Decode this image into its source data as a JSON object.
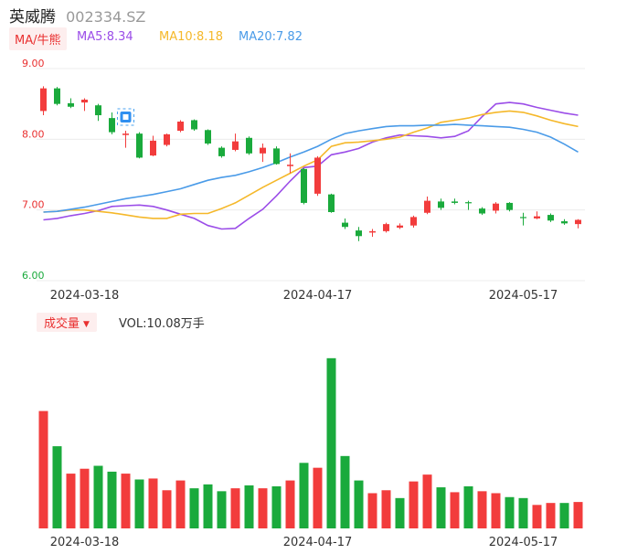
{
  "header": {
    "name": "英威腾",
    "code": "002334.SZ"
  },
  "ma_legend": {
    "toggle_label": "MA/牛熊",
    "items": [
      {
        "label": "MA5:8.34",
        "color": "#9b4de8"
      },
      {
        "label": "MA10:8.18",
        "color": "#f5b82a"
      },
      {
        "label": "MA20:7.82",
        "color": "#4a9be8"
      }
    ]
  },
  "volume_legend": {
    "toggle_label": "成交量",
    "caret": "▼",
    "text": "VOL:10.08万手"
  },
  "colors": {
    "up": "#f23c3c",
    "down": "#1aaa3c",
    "grid": "#ececec",
    "price_axis": "#e93030",
    "low_axis": "#1aaa3c"
  },
  "chart_data": [
    {
      "type": "candlestick",
      "ylim": [
        6.0,
        9.0
      ],
      "y_ticks": [
        "9.00",
        "8.00",
        "7.00",
        "6.00"
      ],
      "x_tick_labels": [
        {
          "label": "2024-03-18",
          "index": 3
        },
        {
          "label": "2024-04-17",
          "index": 20
        },
        {
          "label": "2024-05-17",
          "index": 35
        }
      ],
      "marker_index": 6,
      "candles": [
        {
          "o": 8.4,
          "c": 8.72,
          "h": 8.75,
          "l": 8.34
        },
        {
          "o": 8.72,
          "c": 8.5,
          "h": 8.74,
          "l": 8.48
        },
        {
          "o": 8.51,
          "c": 8.46,
          "h": 8.58,
          "l": 8.44
        },
        {
          "o": 8.52,
          "c": 8.56,
          "h": 8.58,
          "l": 8.4
        },
        {
          "o": 8.48,
          "c": 8.34,
          "h": 8.5,
          "l": 8.26
        },
        {
          "o": 8.3,
          "c": 8.1,
          "h": 8.38,
          "l": 8.07
        },
        {
          "o": 8.06,
          "c": 8.08,
          "h": 8.12,
          "l": 7.88
        },
        {
          "o": 8.08,
          "c": 7.74,
          "h": 8.1,
          "l": 7.73
        },
        {
          "o": 7.77,
          "c": 7.98,
          "h": 8.05,
          "l": 7.76
        },
        {
          "o": 7.92,
          "c": 8.07,
          "h": 8.08,
          "l": 7.9
        },
        {
          "o": 8.12,
          "c": 8.25,
          "h": 8.27,
          "l": 8.1
        },
        {
          "o": 8.27,
          "c": 8.14,
          "h": 8.28,
          "l": 8.12
        },
        {
          "o": 8.13,
          "c": 7.94,
          "h": 8.14,
          "l": 7.92
        },
        {
          "o": 7.88,
          "c": 7.76,
          "h": 7.9,
          "l": 7.74
        },
        {
          "o": 7.85,
          "c": 7.97,
          "h": 8.08,
          "l": 7.83
        },
        {
          "o": 8.02,
          "c": 7.8,
          "h": 8.04,
          "l": 7.78
        },
        {
          "o": 7.8,
          "c": 7.88,
          "h": 7.94,
          "l": 7.68
        },
        {
          "o": 7.87,
          "c": 7.65,
          "h": 7.9,
          "l": 7.64
        },
        {
          "o": 7.62,
          "c": 7.64,
          "h": 7.8,
          "l": 7.52
        },
        {
          "o": 7.58,
          "c": 7.1,
          "h": 7.59,
          "l": 7.08
        },
        {
          "o": 7.23,
          "c": 7.74,
          "h": 7.76,
          "l": 7.2
        },
        {
          "o": 7.22,
          "c": 6.97,
          "h": 7.23,
          "l": 6.96
        },
        {
          "o": 6.82,
          "c": 6.76,
          "h": 6.88,
          "l": 6.73
        },
        {
          "o": 6.71,
          "c": 6.63,
          "h": 6.76,
          "l": 6.56
        },
        {
          "o": 6.68,
          "c": 6.7,
          "h": 6.73,
          "l": 6.62
        },
        {
          "o": 6.7,
          "c": 6.8,
          "h": 6.82,
          "l": 6.68
        },
        {
          "o": 6.75,
          "c": 6.78,
          "h": 6.81,
          "l": 6.73
        },
        {
          "o": 6.78,
          "c": 6.9,
          "h": 6.92,
          "l": 6.75
        },
        {
          "o": 6.96,
          "c": 7.13,
          "h": 7.19,
          "l": 6.94
        },
        {
          "o": 7.12,
          "c": 7.03,
          "h": 7.16,
          "l": 7.0
        },
        {
          "o": 7.12,
          "c": 7.1,
          "h": 7.16,
          "l": 7.08
        },
        {
          "o": 7.11,
          "c": 7.1,
          "h": 7.13,
          "l": 7.0
        },
        {
          "o": 7.02,
          "c": 6.95,
          "h": 7.04,
          "l": 6.93
        },
        {
          "o": 6.99,
          "c": 7.09,
          "h": 7.11,
          "l": 6.95
        },
        {
          "o": 7.1,
          "c": 7.0,
          "h": 7.11,
          "l": 6.98
        },
        {
          "o": 6.9,
          "c": 6.89,
          "h": 6.96,
          "l": 6.78
        },
        {
          "o": 6.88,
          "c": 6.91,
          "h": 6.98,
          "l": 6.87
        },
        {
          "o": 6.93,
          "c": 6.85,
          "h": 6.95,
          "l": 6.83
        },
        {
          "o": 6.84,
          "c": 6.81,
          "h": 6.87,
          "l": 6.79
        },
        {
          "o": 6.8,
          "c": 6.86,
          "h": 6.87,
          "l": 6.74
        }
      ],
      "ma_lines": [
        {
          "values": [
            6.86,
            6.88,
            6.92,
            6.95,
            6.99,
            7.05,
            7.06,
            7.07,
            7.05,
            7.0,
            6.94,
            6.88,
            6.78,
            6.73,
            6.74,
            6.88,
            7.01,
            7.2,
            7.41,
            7.6,
            7.62,
            7.78,
            7.82,
            7.87,
            7.96,
            8.02,
            8.06,
            8.05,
            8.04,
            8.02,
            8.04,
            8.12,
            8.32,
            8.5,
            8.52,
            8.5,
            8.45,
            8.41,
            8.37,
            8.34
          ]
        },
        {
          "values": [
            6.97,
            6.98,
            7.0,
            7.0,
            6.98,
            6.96,
            6.93,
            6.9,
            6.88,
            6.88,
            6.94,
            6.95,
            6.95,
            7.02,
            7.1,
            7.21,
            7.32,
            7.42,
            7.52,
            7.62,
            7.71,
            7.9,
            7.95,
            7.96,
            7.98,
            8.0,
            8.03,
            8.1,
            8.16,
            8.24,
            8.27,
            8.3,
            8.35,
            8.38,
            8.4,
            8.38,
            8.33,
            8.27,
            8.22,
            8.18
          ]
        },
        {
          "values": [
            6.97,
            6.98,
            7.01,
            7.04,
            7.08,
            7.12,
            7.16,
            7.19,
            7.22,
            7.26,
            7.3,
            7.36,
            7.42,
            7.46,
            7.49,
            7.54,
            7.6,
            7.67,
            7.75,
            7.82,
            7.9,
            8.0,
            8.08,
            8.12,
            8.15,
            8.18,
            8.19,
            8.19,
            8.2,
            8.2,
            8.21,
            8.2,
            8.19,
            8.18,
            8.17,
            8.14,
            8.1,
            8.03,
            7.93,
            7.82
          ]
        }
      ]
    },
    {
      "type": "bar",
      "ylim": [
        0,
        20
      ],
      "bars": [
        {
          "v": 12.0,
          "up": true
        },
        {
          "v": 8.4,
          "up": false
        },
        {
          "v": 5.6,
          "up": true
        },
        {
          "v": 6.1,
          "up": true
        },
        {
          "v": 6.4,
          "up": false
        },
        {
          "v": 5.8,
          "up": false
        },
        {
          "v": 5.6,
          "up": true
        },
        {
          "v": 5.0,
          "up": false
        },
        {
          "v": 5.1,
          "up": true
        },
        {
          "v": 3.9,
          "up": true
        },
        {
          "v": 4.9,
          "up": true
        },
        {
          "v": 4.1,
          "up": false
        },
        {
          "v": 4.5,
          "up": false
        },
        {
          "v": 3.8,
          "up": false
        },
        {
          "v": 4.1,
          "up": true
        },
        {
          "v": 4.4,
          "up": false
        },
        {
          "v": 4.1,
          "up": true
        },
        {
          "v": 4.3,
          "up": false
        },
        {
          "v": 4.9,
          "up": true
        },
        {
          "v": 6.7,
          "up": false
        },
        {
          "v": 6.2,
          "up": true
        },
        {
          "v": 17.4,
          "up": false
        },
        {
          "v": 7.4,
          "up": false
        },
        {
          "v": 4.9,
          "up": false
        },
        {
          "v": 3.6,
          "up": true
        },
        {
          "v": 3.9,
          "up": true
        },
        {
          "v": 3.1,
          "up": false
        },
        {
          "v": 4.8,
          "up": true
        },
        {
          "v": 5.5,
          "up": true
        },
        {
          "v": 4.2,
          "up": false
        },
        {
          "v": 3.7,
          "up": true
        },
        {
          "v": 4.3,
          "up": false
        },
        {
          "v": 3.8,
          "up": true
        },
        {
          "v": 3.6,
          "up": true
        },
        {
          "v": 3.2,
          "up": false
        },
        {
          "v": 3.1,
          "up": false
        },
        {
          "v": 2.4,
          "up": true
        },
        {
          "v": 2.6,
          "up": true
        },
        {
          "v": 2.6,
          "up": false
        },
        {
          "v": 2.7,
          "up": true
        }
      ]
    }
  ]
}
